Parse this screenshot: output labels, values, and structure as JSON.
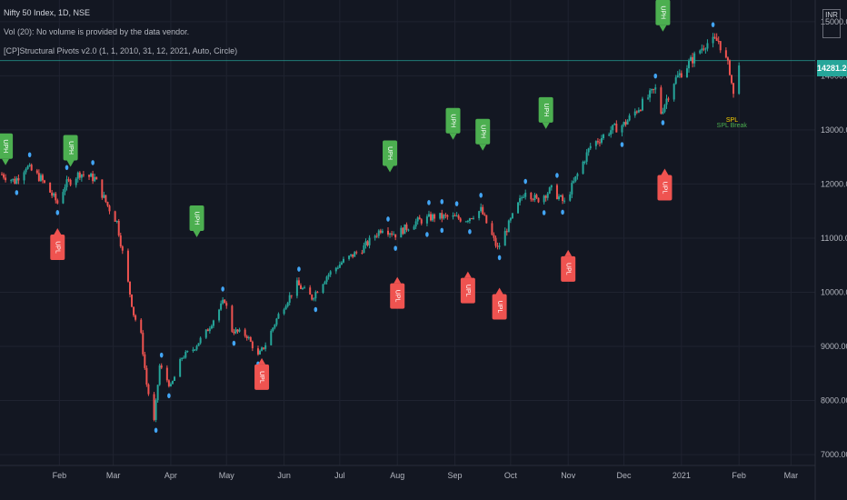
{
  "legend": {
    "title": "Nifty 50 Index, 1D, NSE",
    "vol": "Vol (20): No volume is provided by the data vendor.",
    "indicator": "[CP]Structural Pivots v2.0 (1, 1, 2010, 31, 12, 2021, Auto, Circle)"
  },
  "price_axis": {
    "currency": "INR",
    "last_price": "14281.20"
  },
  "colors": {
    "background": "#131722",
    "up": "#26a69a",
    "down": "#ef5350",
    "pivot_dot": "#42a5f5",
    "uph": "#4caf50",
    "upl": "#ef5350",
    "grid": "#1f2330",
    "last_line": "#26a69a"
  },
  "chart_data": {
    "type": "candlestick",
    "x_range": [
      "2020-01-01",
      "2021-03-15"
    ],
    "ylim": [
      6800,
      15400
    ],
    "y_ticks": [
      7000,
      8000,
      9000,
      10000,
      11000,
      12000,
      13000,
      14000,
      15000
    ],
    "y_tick_labels": [
      "7000.00",
      "8000.00",
      "9000.00",
      "10000.00",
      "11000.00",
      "12000.00",
      "13000.00",
      "14000.00",
      "15000.00"
    ],
    "x_ticks": [
      {
        "date": "2020-02-01",
        "label": "Feb"
      },
      {
        "date": "2020-03-01",
        "label": "Mar"
      },
      {
        "date": "2020-04-01",
        "label": "Apr"
      },
      {
        "date": "2020-05-01",
        "label": "May"
      },
      {
        "date": "2020-06-01",
        "label": "Jun"
      },
      {
        "date": "2020-07-01",
        "label": "Jul"
      },
      {
        "date": "2020-08-01",
        "label": "Aug"
      },
      {
        "date": "2020-09-01",
        "label": "Sep"
      },
      {
        "date": "2020-10-01",
        "label": "Oct"
      },
      {
        "date": "2020-11-01",
        "label": "Nov"
      },
      {
        "date": "2020-12-01",
        "label": "Dec"
      },
      {
        "date": "2021-01-01",
        "label": "2021"
      },
      {
        "date": "2021-02-01",
        "label": "Feb"
      },
      {
        "date": "2021-03-01",
        "label": "Mar"
      }
    ],
    "last_price": 14281.2,
    "close_anchors": [
      [
        "2020-01-01",
        12180
      ],
      [
        "2020-01-08",
        12050
      ],
      [
        "2020-01-14",
        12330
      ],
      [
        "2020-01-22",
        12100
      ],
      [
        "2020-01-31",
        11650
      ],
      [
        "2020-02-04",
        11980
      ],
      [
        "2020-02-12",
        12200
      ],
      [
        "2020-02-20",
        12100
      ],
      [
        "2020-02-27",
        11600
      ],
      [
        "2020-03-03",
        11300
      ],
      [
        "2020-03-12",
        9600
      ],
      [
        "2020-03-16",
        9200
      ],
      [
        "2020-03-19",
        8300
      ],
      [
        "2020-03-23",
        7610
      ],
      [
        "2020-03-26",
        8640
      ],
      [
        "2020-04-01",
        8250
      ],
      [
        "2020-04-07",
        8800
      ],
      [
        "2020-04-13",
        8950
      ],
      [
        "2020-04-20",
        9260
      ],
      [
        "2020-04-30",
        9860
      ],
      [
        "2020-05-04",
        9300
      ],
      [
        "2020-05-12",
        9200
      ],
      [
        "2020-05-18",
        8820
      ],
      [
        "2020-05-22",
        9040
      ],
      [
        "2020-05-29",
        9580
      ],
      [
        "2020-06-08",
        10150
      ],
      [
        "2020-06-16",
        9900
      ],
      [
        "2020-06-24",
        10300
      ],
      [
        "2020-07-02",
        10550
      ],
      [
        "2020-07-13",
        10800
      ],
      [
        "2020-07-24",
        11200
      ],
      [
        "2020-07-31",
        11070
      ],
      [
        "2020-08-11",
        11300
      ],
      [
        "2020-08-21",
        11400
      ],
      [
        "2020-08-31",
        11380
      ],
      [
        "2020-09-07",
        11350
      ],
      [
        "2020-09-15",
        11520
      ],
      [
        "2020-09-24",
        10800
      ],
      [
        "2020-09-30",
        11250
      ],
      [
        "2020-10-09",
        11900
      ],
      [
        "2020-10-15",
        11700
      ],
      [
        "2020-10-23",
        11900
      ],
      [
        "2020-10-30",
        11650
      ],
      [
        "2020-11-05",
        12100
      ],
      [
        "2020-11-13",
        12700
      ],
      [
        "2020-11-24",
        13000
      ],
      [
        "2020-12-01",
        13100
      ],
      [
        "2020-12-10",
        13450
      ],
      [
        "2020-12-18",
        13750
      ],
      [
        "2020-12-21",
        13330
      ],
      [
        "2020-12-28",
        13900
      ],
      [
        "2021-01-08",
        14350
      ],
      [
        "2021-01-14",
        14600
      ],
      [
        "2021-01-21",
        14650
      ],
      [
        "2021-01-27",
        14100
      ],
      [
        "2021-01-29",
        13630
      ],
      [
        "2021-02-01",
        14281
      ]
    ],
    "pivot_markers": [
      {
        "label": "UPH",
        "type": "high",
        "date": "2020-01-03",
        "price": 12330
      },
      {
        "label": "UPH",
        "type": "high",
        "date": "2020-02-07",
        "price": 12300
      },
      {
        "label": "UPL",
        "type": "low",
        "date": "2020-01-31",
        "price": 11200
      },
      {
        "label": "UPH",
        "type": "high",
        "date": "2020-04-15",
        "price": 11000
      },
      {
        "label": "UPL",
        "type": "low",
        "date": "2020-05-20",
        "price": 8800
      },
      {
        "label": "UPH",
        "type": "high",
        "date": "2020-07-28",
        "price": 12200
      },
      {
        "label": "UPL",
        "type": "low",
        "date": "2020-08-01",
        "price": 10300
      },
      {
        "label": "UPH",
        "type": "high",
        "date": "2020-08-31",
        "price": 12800
      },
      {
        "label": "UPL",
        "type": "low",
        "date": "2020-09-08",
        "price": 10400
      },
      {
        "label": "UPH",
        "type": "high",
        "date": "2020-09-16",
        "price": 12600
      },
      {
        "label": "UPL",
        "type": "low",
        "date": "2020-09-25",
        "price": 10100
      },
      {
        "label": "UPH",
        "type": "high",
        "date": "2020-10-20",
        "price": 13000
      },
      {
        "label": "UPL",
        "type": "low",
        "date": "2020-11-01",
        "price": 10800
      },
      {
        "label": "UPH",
        "type": "high",
        "date": "2020-12-22",
        "price": 14800
      },
      {
        "label": "UPL",
        "type": "low",
        "date": "2020-12-23",
        "price": 12300
      }
    ],
    "annotations": [
      {
        "text": "SPL Break",
        "date": "2021-01-20",
        "price": 13050,
        "color": "#4caf50"
      },
      {
        "text": "SPL",
        "date": "2021-01-25",
        "price": 13150,
        "color": "#ffd600"
      }
    ]
  }
}
